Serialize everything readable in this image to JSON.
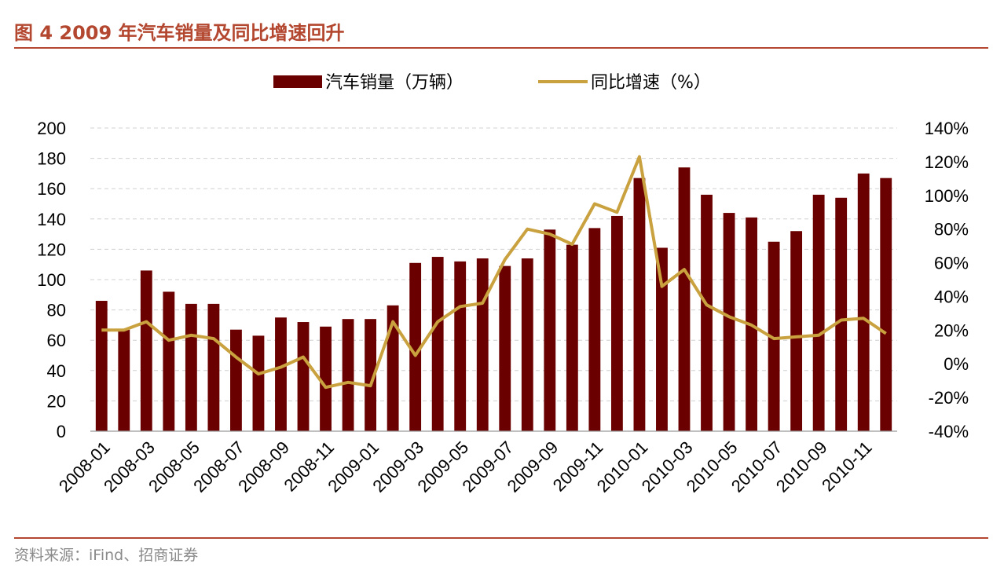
{
  "header": {
    "title": "图 4 2009 年汽车销量及同比增速回升"
  },
  "footer": {
    "source": "资料来源：iFind、招商证券"
  },
  "colors": {
    "bar": "#6b0000",
    "line": "#c9a23f",
    "accent": "#b3472f",
    "grid": "#d0d0d0"
  },
  "chart_data": {
    "type": "bar",
    "categories": [
      "2008-01",
      "2008-02",
      "2008-03",
      "2008-04",
      "2008-05",
      "2008-06",
      "2008-07",
      "2008-08",
      "2008-09",
      "2008-10",
      "2008-11",
      "2008-12",
      "2009-01",
      "2009-02",
      "2009-03",
      "2009-04",
      "2009-05",
      "2009-06",
      "2009-07",
      "2009-08",
      "2009-09",
      "2009-10",
      "2009-11",
      "2009-12",
      "2010-01",
      "2010-02",
      "2010-03",
      "2010-04",
      "2010-05",
      "2010-06",
      "2010-07",
      "2010-08",
      "2010-09",
      "2010-10",
      "2010-11",
      "2010-12"
    ],
    "x_tick_labels": [
      "2008-01",
      "2008-03",
      "2008-05",
      "2008-07",
      "2008-09",
      "2008-11",
      "2009-01",
      "2009-03",
      "2009-05",
      "2009-07",
      "2009-09",
      "2009-11",
      "2010-01",
      "2010-03",
      "2010-05",
      "2010-07",
      "2010-09",
      "2010-11"
    ],
    "series": [
      {
        "name": "汽车销量（万辆）",
        "type": "bar",
        "axis": "left",
        "values": [
          86,
          67,
          106,
          92,
          84,
          84,
          67,
          63,
          75,
          72,
          69,
          74,
          74,
          83,
          111,
          115,
          112,
          114,
          109,
          114,
          133,
          123,
          134,
          142,
          167,
          121,
          174,
          156,
          144,
          141,
          125,
          132,
          156,
          154,
          170,
          167
        ]
      },
      {
        "name": "同比增速（%）",
        "type": "line",
        "axis": "right",
        "values": [
          20,
          20,
          25,
          14,
          17,
          15,
          4,
          -6,
          -2,
          4,
          -14,
          -11,
          -13,
          25,
          5,
          25,
          34,
          36,
          62,
          80,
          77,
          71,
          95,
          90,
          123,
          46,
          56,
          35,
          28,
          23,
          15,
          16,
          17,
          26,
          27,
          18
        ]
      }
    ],
    "y_left": {
      "min": 0,
      "max": 200,
      "step": 20,
      "tick_labels": [
        "0",
        "20",
        "40",
        "60",
        "80",
        "100",
        "120",
        "140",
        "160",
        "180",
        "200"
      ]
    },
    "y_right": {
      "min": -40,
      "max": 140,
      "step": 20,
      "tick_labels": [
        "-40%",
        "-20%",
        "0%",
        "20%",
        "40%",
        "60%",
        "80%",
        "100%",
        "120%",
        "140%"
      ]
    },
    "grid": true,
    "legend_position": "top-center"
  }
}
